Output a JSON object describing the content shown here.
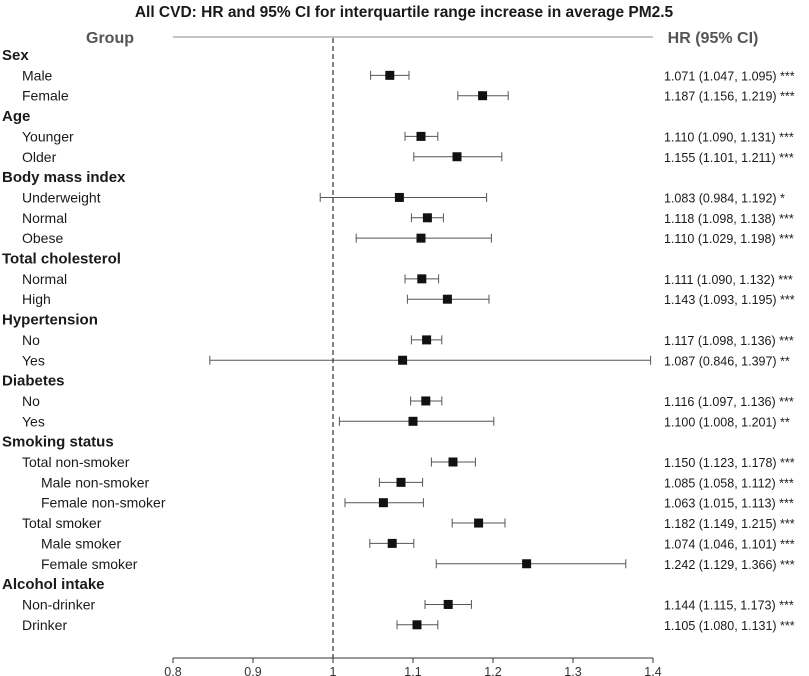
{
  "chart_data": {
    "type": "forest",
    "title": "All CVD: HR and 95% CI for interquartile range increase in average PM2.5",
    "column_headers": {
      "group": "Group",
      "hr": "HR (95% CI)"
    },
    "reference_line": 1,
    "xlim": [
      0.8,
      1.4
    ],
    "xticks": [
      0.8,
      0.9,
      1,
      1.1,
      1.2,
      1.3,
      1.4
    ],
    "rows": [
      {
        "kind": "header",
        "label": "Sex"
      },
      {
        "kind": "item",
        "level": 1,
        "label": "Male",
        "hr": 1.071,
        "lo": 1.047,
        "hi": 1.095,
        "text": "1.071 (1.047, 1.095) ***"
      },
      {
        "kind": "item",
        "level": 1,
        "label": "Female",
        "hr": 1.187,
        "lo": 1.156,
        "hi": 1.219,
        "text": "1.187 (1.156, 1.219) ***"
      },
      {
        "kind": "header",
        "label": "Age"
      },
      {
        "kind": "item",
        "level": 1,
        "label": "Younger",
        "hr": 1.11,
        "lo": 1.09,
        "hi": 1.131,
        "text": "1.110 (1.090, 1.131) ***"
      },
      {
        "kind": "item",
        "level": 1,
        "label": "Older",
        "hr": 1.155,
        "lo": 1.101,
        "hi": 1.211,
        "text": "1.155 (1.101, 1.211) ***"
      },
      {
        "kind": "header",
        "label": "Body mass index"
      },
      {
        "kind": "item",
        "level": 1,
        "label": "Underweight",
        "hr": 1.083,
        "lo": 0.984,
        "hi": 1.192,
        "text": "1.083 (0.984, 1.192) *"
      },
      {
        "kind": "item",
        "level": 1,
        "label": "Normal",
        "hr": 1.118,
        "lo": 1.098,
        "hi": 1.138,
        "text": "1.118 (1.098, 1.138) ***"
      },
      {
        "kind": "item",
        "level": 1,
        "label": "Obese",
        "hr": 1.11,
        "lo": 1.029,
        "hi": 1.198,
        "text": "1.110 (1.029, 1.198) ***"
      },
      {
        "kind": "header",
        "label": "Total cholesterol"
      },
      {
        "kind": "item",
        "level": 1,
        "label": "Normal",
        "hr": 1.111,
        "lo": 1.09,
        "hi": 1.132,
        "text": "1.111 (1.090, 1.132) ***"
      },
      {
        "kind": "item",
        "level": 1,
        "label": "High",
        "hr": 1.143,
        "lo": 1.093,
        "hi": 1.195,
        "text": "1.143 (1.093, 1.195) ***"
      },
      {
        "kind": "header",
        "label": "Hypertension"
      },
      {
        "kind": "item",
        "level": 1,
        "label": "No",
        "hr": 1.117,
        "lo": 1.098,
        "hi": 1.136,
        "text": "1.117 (1.098, 1.136) ***"
      },
      {
        "kind": "item",
        "level": 1,
        "label": "Yes",
        "hr": 1.087,
        "lo": 0.846,
        "hi": 1.397,
        "text": "1.087 (0.846, 1.397) **"
      },
      {
        "kind": "header",
        "label": "Diabetes"
      },
      {
        "kind": "item",
        "level": 1,
        "label": "No",
        "hr": 1.116,
        "lo": 1.097,
        "hi": 1.136,
        "text": "1.116 (1.097, 1.136) ***"
      },
      {
        "kind": "item",
        "level": 1,
        "label": "Yes",
        "hr": 1.1,
        "lo": 1.008,
        "hi": 1.201,
        "text": "1.100 (1.008, 1.201) **"
      },
      {
        "kind": "header",
        "label": "Smoking status"
      },
      {
        "kind": "item",
        "level": 1,
        "label": "Total non-smoker",
        "hr": 1.15,
        "lo": 1.123,
        "hi": 1.178,
        "text": "1.150 (1.123, 1.178) ***"
      },
      {
        "kind": "item",
        "level": 2,
        "label": "Male non-smoker",
        "hr": 1.085,
        "lo": 1.058,
        "hi": 1.112,
        "text": "1.085 (1.058, 1.112) ***"
      },
      {
        "kind": "item",
        "level": 2,
        "label": "Female non-smoker",
        "hr": 1.063,
        "lo": 1.015,
        "hi": 1.113,
        "text": "1.063 (1.015, 1.113) ***"
      },
      {
        "kind": "item",
        "level": 1,
        "label": "Total smoker",
        "hr": 1.182,
        "lo": 1.149,
        "hi": 1.215,
        "text": "1.182 (1.149, 1.215) ***"
      },
      {
        "kind": "item",
        "level": 2,
        "label": "Male smoker",
        "hr": 1.074,
        "lo": 1.046,
        "hi": 1.101,
        "text": "1.074 (1.046, 1.101) ***"
      },
      {
        "kind": "item",
        "level": 2,
        "label": "Female smoker",
        "hr": 1.242,
        "lo": 1.129,
        "hi": 1.366,
        "text": "1.242 (1.129, 1.366) ***"
      },
      {
        "kind": "header",
        "label": "Alcohol intake"
      },
      {
        "kind": "item",
        "level": 1,
        "label": "Non-drinker",
        "hr": 1.144,
        "lo": 1.115,
        "hi": 1.173,
        "text": "1.144 (1.115, 1.173) ***"
      },
      {
        "kind": "item",
        "level": 1,
        "label": "Drinker",
        "hr": 1.105,
        "lo": 1.08,
        "hi": 1.131,
        "text": "1.105 (1.080, 1.131) ***"
      }
    ]
  }
}
